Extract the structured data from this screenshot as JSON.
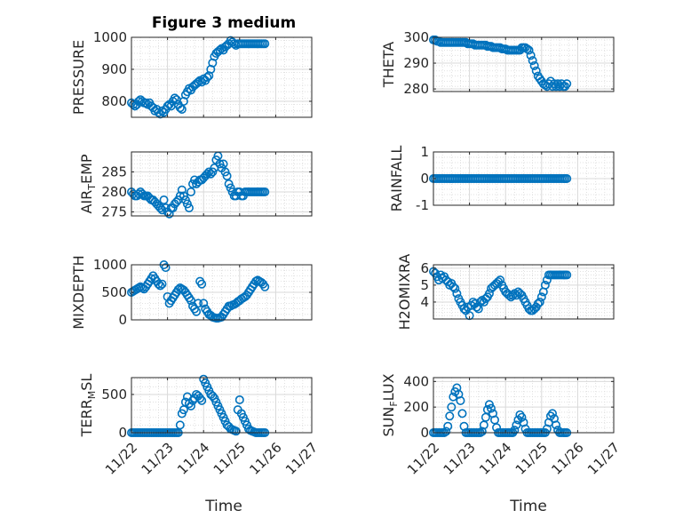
{
  "figure": {
    "title": "Figure 3 medium",
    "xlabel": "Time",
    "marker_color": "#0072BD",
    "grid_color": "#d9d9d9",
    "axis_color": "#262626"
  },
  "chart_data": [
    {
      "type": "scatter",
      "id": "pressure",
      "ylabel": {
        "main": "PRESSURE"
      },
      "ylim": [
        750,
        1000
      ],
      "yticks": [
        800,
        900,
        1000
      ],
      "yticklabels": [
        "800",
        "900",
        "1000"
      ],
      "xticklabels": [],
      "grid": true,
      "x": [
        0,
        0.05,
        0.1,
        0.15,
        0.2,
        0.25,
        0.3,
        0.35,
        0.4,
        0.45,
        0.5,
        0.55,
        0.6,
        0.65,
        0.7,
        0.75,
        0.8,
        0.85,
        0.9,
        0.95,
        1.0,
        1.05,
        1.1,
        1.15,
        1.2,
        1.25,
        1.3,
        1.35,
        1.4,
        1.45,
        1.5,
        1.55,
        1.6,
        1.65,
        1.7,
        1.75,
        1.8,
        1.85,
        1.9,
        1.95,
        2.0,
        2.05,
        2.1,
        2.15,
        2.2,
        2.25,
        2.3,
        2.35,
        2.4,
        2.45,
        2.5,
        2.55,
        2.6,
        2.65,
        2.7,
        2.75,
        2.8,
        2.85,
        2.9,
        2.95,
        3.0,
        3.05,
        3.1,
        3.15,
        3.2,
        3.25,
        3.3,
        3.35,
        3.4,
        3.45,
        3.5,
        3.55,
        3.6,
        3.65,
        3.7
      ],
      "y": [
        795,
        790,
        785,
        790,
        800,
        805,
        800,
        795,
        795,
        790,
        795,
        785,
        780,
        770,
        775,
        765,
        760,
        770,
        765,
        775,
        785,
        790,
        785,
        800,
        810,
        805,
        790,
        780,
        775,
        800,
        820,
        830,
        840,
        835,
        845,
        850,
        855,
        860,
        865,
        860,
        870,
        865,
        875,
        880,
        900,
        920,
        940,
        950,
        955,
        960,
        965,
        960,
        970,
        975,
        980,
        990,
        985,
        980,
        975,
        980,
        980,
        980,
        980,
        980,
        980,
        980,
        980,
        980,
        980,
        980,
        980,
        980,
        980,
        980,
        980
      ]
    },
    {
      "type": "scatter",
      "id": "theta",
      "ylabel": {
        "main": "THETA"
      },
      "ylim": [
        279,
        300
      ],
      "yticks": [
        280,
        290,
        300
      ],
      "yticklabels": [
        "280",
        "290",
        "300"
      ],
      "xticklabels": [],
      "grid": true,
      "x": [
        0,
        0.05,
        0.1,
        0.15,
        0.2,
        0.25,
        0.3,
        0.35,
        0.4,
        0.45,
        0.5,
        0.55,
        0.6,
        0.65,
        0.7,
        0.75,
        0.8,
        0.85,
        0.9,
        0.95,
        1.0,
        1.05,
        1.1,
        1.15,
        1.2,
        1.25,
        1.3,
        1.35,
        1.4,
        1.45,
        1.5,
        1.55,
        1.6,
        1.65,
        1.7,
        1.75,
        1.8,
        1.85,
        1.9,
        1.95,
        2.0,
        2.05,
        2.1,
        2.15,
        2.2,
        2.25,
        2.3,
        2.35,
        2.4,
        2.45,
        2.5,
        2.55,
        2.6,
        2.65,
        2.7,
        2.75,
        2.8,
        2.85,
        2.9,
        2.95,
        3.0,
        3.05,
        3.1,
        3.15,
        3.2,
        3.25,
        3.3,
        3.35,
        3.4,
        3.45,
        3.5,
        3.55,
        3.6,
        3.65,
        3.7
      ],
      "y": [
        299,
        299,
        298.5,
        298.5,
        298,
        298,
        298,
        298,
        298,
        298,
        298,
        298,
        298,
        298,
        298,
        298,
        298,
        298,
        298,
        297.5,
        297.5,
        297.5,
        297.5,
        297,
        297,
        297,
        297,
        297,
        297,
        297,
        296.5,
        296.5,
        296.5,
        296,
        296,
        296,
        296,
        296,
        295.5,
        295.5,
        295.5,
        295,
        295,
        295,
        295,
        295,
        295,
        295,
        295,
        296,
        296,
        296,
        295.5,
        295,
        293,
        291,
        289,
        287,
        285,
        284,
        283,
        282,
        281.5,
        281,
        282,
        283,
        281,
        282,
        281,
        282,
        281,
        282,
        281,
        281,
        282
      ]
    },
    {
      "type": "scatter",
      "id": "air_temp",
      "ylabel": {
        "main": "AIR",
        "sub": "T",
        "rest": "EMP"
      },
      "ylim": [
        274,
        290
      ],
      "yticks": [
        275,
        280,
        285
      ],
      "yticklabels": [
        "275",
        "280",
        "285"
      ],
      "xticklabels": [],
      "grid": true,
      "x": [
        0,
        0.05,
        0.1,
        0.15,
        0.2,
        0.25,
        0.3,
        0.35,
        0.4,
        0.45,
        0.5,
        0.55,
        0.6,
        0.65,
        0.7,
        0.75,
        0.8,
        0.85,
        0.9,
        0.95,
        1.0,
        1.05,
        1.1,
        1.15,
        1.2,
        1.25,
        1.3,
        1.35,
        1.4,
        1.45,
        1.5,
        1.55,
        1.6,
        1.65,
        1.7,
        1.75,
        1.8,
        1.85,
        1.9,
        1.95,
        2.0,
        2.05,
        2.1,
        2.15,
        2.2,
        2.25,
        2.3,
        2.35,
        2.4,
        2.45,
        2.5,
        2.55,
        2.6,
        2.65,
        2.7,
        2.75,
        2.8,
        2.85,
        2.9,
        2.95,
        3.0,
        3.05,
        3.1,
        3.15,
        3.2,
        3.25,
        3.3,
        3.35,
        3.4,
        3.45,
        3.5,
        3.55,
        3.6,
        3.65,
        3.7
      ],
      "y": [
        280,
        279.5,
        279,
        279,
        279.5,
        280,
        279.5,
        279,
        279,
        279,
        278.5,
        278,
        278,
        277.5,
        277,
        276.5,
        276,
        275.5,
        278,
        276,
        275,
        274.5,
        276,
        276,
        277,
        277.5,
        278,
        279,
        280.5,
        279,
        278,
        277,
        276,
        280,
        282,
        283,
        282,
        282.5,
        283,
        283,
        283.5,
        284,
        284.5,
        285,
        284.5,
        285,
        286,
        288,
        289,
        287,
        286,
        287,
        285,
        284,
        282,
        281,
        280,
        279,
        279,
        280,
        280,
        279,
        279,
        280,
        280,
        280,
        280,
        280,
        280,
        280,
        280,
        280,
        280,
        280,
        280
      ]
    },
    {
      "type": "scatter",
      "id": "rainfall",
      "ylabel": {
        "main": "RAINFALL"
      },
      "ylim": [
        -1,
        1
      ],
      "yticks": [
        -1,
        0,
        1
      ],
      "yticklabels": [
        "-1",
        "0",
        "1"
      ],
      "xticklabels": [],
      "grid": true,
      "x": [
        0,
        0.05,
        0.1,
        0.15,
        0.2,
        0.25,
        0.3,
        0.35,
        0.4,
        0.45,
        0.5,
        0.55,
        0.6,
        0.65,
        0.7,
        0.75,
        0.8,
        0.85,
        0.9,
        0.95,
        1.0,
        1.05,
        1.1,
        1.15,
        1.2,
        1.25,
        1.3,
        1.35,
        1.4,
        1.45,
        1.5,
        1.55,
        1.6,
        1.65,
        1.7,
        1.75,
        1.8,
        1.85,
        1.9,
        1.95,
        2.0,
        2.05,
        2.1,
        2.15,
        2.2,
        2.25,
        2.3,
        2.35,
        2.4,
        2.45,
        2.5,
        2.55,
        2.6,
        2.65,
        2.7,
        2.75,
        2.8,
        2.85,
        2.9,
        2.95,
        3.0,
        3.05,
        3.1,
        3.15,
        3.2,
        3.25,
        3.3,
        3.35,
        3.4,
        3.45,
        3.5,
        3.55,
        3.6,
        3.65,
        3.7
      ],
      "y": [
        0,
        0,
        0,
        0,
        0,
        0,
        0,
        0,
        0,
        0,
        0,
        0,
        0,
        0,
        0,
        0,
        0,
        0,
        0,
        0,
        0,
        0,
        0,
        0,
        0,
        0,
        0,
        0,
        0,
        0,
        0,
        0,
        0,
        0,
        0,
        0,
        0,
        0,
        0,
        0,
        0,
        0,
        0,
        0,
        0,
        0,
        0,
        0,
        0,
        0,
        0,
        0,
        0,
        0,
        0,
        0,
        0,
        0,
        0,
        0,
        0,
        0,
        0,
        0,
        0,
        0,
        0,
        0,
        0,
        0,
        0,
        0,
        0,
        0,
        0
      ]
    },
    {
      "type": "scatter",
      "id": "mixdepth",
      "ylabel": {
        "main": "MIXDEPTH"
      },
      "ylim": [
        0,
        1000
      ],
      "yticks": [
        0,
        500,
        1000
      ],
      "yticklabels": [
        "0",
        "500",
        "1000"
      ],
      "xticklabels": [],
      "grid": true,
      "x": [
        0,
        0.05,
        0.1,
        0.15,
        0.2,
        0.25,
        0.3,
        0.35,
        0.4,
        0.45,
        0.5,
        0.55,
        0.6,
        0.65,
        0.7,
        0.75,
        0.8,
        0.85,
        0.9,
        0.95,
        1.0,
        1.05,
        1.1,
        1.15,
        1.2,
        1.25,
        1.3,
        1.35,
        1.4,
        1.45,
        1.5,
        1.55,
        1.6,
        1.65,
        1.7,
        1.75,
        1.8,
        1.85,
        1.9,
        1.95,
        2.0,
        2.05,
        2.1,
        2.15,
        2.2,
        2.25,
        2.3,
        2.35,
        2.4,
        2.45,
        2.5,
        2.55,
        2.6,
        2.65,
        2.7,
        2.75,
        2.8,
        2.85,
        2.9,
        2.95,
        3.0,
        3.05,
        3.1,
        3.15,
        3.2,
        3.25,
        3.3,
        3.35,
        3.4,
        3.45,
        3.5,
        3.55,
        3.6,
        3.65,
        3.7
      ],
      "y": [
        500,
        520,
        540,
        560,
        580,
        600,
        580,
        560,
        600,
        650,
        700,
        750,
        800,
        750,
        700,
        650,
        620,
        650,
        1000,
        950,
        420,
        300,
        350,
        400,
        450,
        500,
        550,
        580,
        560,
        540,
        500,
        450,
        400,
        350,
        250,
        200,
        150,
        300,
        700,
        650,
        300,
        200,
        150,
        100,
        80,
        50,
        40,
        30,
        30,
        40,
        50,
        100,
        150,
        200,
        250,
        250,
        270,
        280,
        300,
        330,
        350,
        380,
        400,
        420,
        450,
        500,
        550,
        600,
        650,
        700,
        720,
        700,
        680,
        650,
        600
      ]
    },
    {
      "type": "scatter",
      "id": "h2omixra",
      "ylabel": {
        "main": "H2OMIXRA"
      },
      "ylim": [
        3,
        6.2
      ],
      "yticks": [
        4,
        5,
        6
      ],
      "yticklabels": [
        "4",
        "5",
        "6"
      ],
      "xticklabels": [],
      "grid": true,
      "x": [
        0,
        0.05,
        0.1,
        0.15,
        0.2,
        0.25,
        0.3,
        0.35,
        0.4,
        0.45,
        0.5,
        0.55,
        0.6,
        0.65,
        0.7,
        0.75,
        0.8,
        0.85,
        0.9,
        0.95,
        1.0,
        1.05,
        1.1,
        1.15,
        1.2,
        1.25,
        1.3,
        1.35,
        1.4,
        1.45,
        1.5,
        1.55,
        1.6,
        1.65,
        1.7,
        1.75,
        1.8,
        1.85,
        1.9,
        1.95,
        2.0,
        2.05,
        2.1,
        2.15,
        2.2,
        2.25,
        2.3,
        2.35,
        2.4,
        2.45,
        2.5,
        2.55,
        2.6,
        2.65,
        2.7,
        2.75,
        2.8,
        2.85,
        2.9,
        2.95,
        3.0,
        3.05,
        3.1,
        3.15,
        3.2,
        3.25,
        3.3,
        3.35,
        3.4,
        3.45,
        3.5,
        3.55,
        3.6,
        3.65,
        3.7
      ],
      "y": [
        5.8,
        5.7,
        5.5,
        5.3,
        5.6,
        5.4,
        5.5,
        5.3,
        5.2,
        5.0,
        5.1,
        4.9,
        4.8,
        4.5,
        4.2,
        4.0,
        3.8,
        3.6,
        3.5,
        3.7,
        3.2,
        3.8,
        4.0,
        3.9,
        3.7,
        3.6,
        4.0,
        4.1,
        4.0,
        4.2,
        4.3,
        4.5,
        4.8,
        4.9,
        5.0,
        5.1,
        5.2,
        5.3,
        5.0,
        4.8,
        4.6,
        4.5,
        4.4,
        4.3,
        4.4,
        4.5,
        4.4,
        4.6,
        4.5,
        4.4,
        4.2,
        4.0,
        3.8,
        3.6,
        3.5,
        3.5,
        3.6,
        3.7,
        3.9,
        4.0,
        4.3,
        4.6,
        5.0,
        5.3,
        5.6,
        5.6,
        5.6,
        5.6,
        5.6,
        5.6,
        5.6,
        5.6,
        5.6,
        5.6,
        5.6
      ]
    },
    {
      "type": "scatter",
      "id": "terr_msl",
      "ylabel": {
        "main": "TERR",
        "sub": "M",
        "rest": "SL"
      },
      "ylim": [
        0,
        720
      ],
      "yticks": [
        0,
        500
      ],
      "yticklabels": [
        "0",
        "500"
      ],
      "xticks": [
        0,
        1,
        2,
        3,
        4,
        5
      ],
      "xticklabels": [
        "11/22",
        "11/23",
        "11/24",
        "11/25",
        "11/26",
        "11/27"
      ],
      "grid": true,
      "x": [
        0,
        0.05,
        0.1,
        0.15,
        0.2,
        0.25,
        0.3,
        0.35,
        0.4,
        0.45,
        0.5,
        0.55,
        0.6,
        0.65,
        0.7,
        0.75,
        0.8,
        0.85,
        0.9,
        0.95,
        1.0,
        1.05,
        1.1,
        1.15,
        1.2,
        1.25,
        1.3,
        1.35,
        1.4,
        1.45,
        1.5,
        1.55,
        1.6,
        1.65,
        1.7,
        1.75,
        1.8,
        1.85,
        1.9,
        1.95,
        2.0,
        2.05,
        2.1,
        2.15,
        2.2,
        2.25,
        2.3,
        2.35,
        2.4,
        2.45,
        2.5,
        2.55,
        2.6,
        2.65,
        2.7,
        2.75,
        2.8,
        2.85,
        2.9,
        2.95,
        3.0,
        3.05,
        3.1,
        3.15,
        3.2,
        3.25,
        3.3,
        3.35,
        3.4,
        3.45,
        3.5,
        3.55,
        3.6,
        3.65,
        3.7
      ],
      "y": [
        0,
        0,
        0,
        0,
        0,
        0,
        0,
        0,
        0,
        0,
        0,
        0,
        0,
        0,
        0,
        0,
        0,
        0,
        0,
        0,
        0,
        0,
        0,
        0,
        0,
        0,
        0,
        100,
        250,
        300,
        400,
        470,
        380,
        350,
        420,
        450,
        500,
        480,
        450,
        420,
        700,
        650,
        600,
        550,
        500,
        480,
        450,
        400,
        350,
        300,
        250,
        200,
        150,
        100,
        80,
        50,
        40,
        30,
        20,
        300,
        430,
        250,
        200,
        150,
        100,
        50,
        30,
        20,
        10,
        0,
        0,
        0,
        0,
        0,
        0
      ]
    },
    {
      "type": "scatter",
      "id": "sun_flux",
      "ylabel": {
        "main": "SUN",
        "sub": "F",
        "rest": "LUX"
      },
      "ylim": [
        0,
        430
      ],
      "yticks": [
        0,
        200,
        400
      ],
      "yticklabels": [
        "0",
        "200",
        "400"
      ],
      "xticks": [
        0,
        1,
        2,
        3,
        4,
        5
      ],
      "xticklabels": [
        "11/22",
        "11/23",
        "11/24",
        "11/25",
        "11/26",
        "11/27"
      ],
      "grid": true,
      "x": [
        0,
        0.05,
        0.1,
        0.15,
        0.2,
        0.25,
        0.3,
        0.35,
        0.4,
        0.45,
        0.5,
        0.55,
        0.6,
        0.65,
        0.7,
        0.75,
        0.8,
        0.85,
        0.9,
        0.95,
        1.0,
        1.05,
        1.1,
        1.15,
        1.2,
        1.25,
        1.3,
        1.35,
        1.4,
        1.45,
        1.5,
        1.55,
        1.6,
        1.65,
        1.7,
        1.75,
        1.8,
        1.85,
        1.9,
        1.95,
        2.0,
        2.05,
        2.1,
        2.15,
        2.2,
        2.25,
        2.3,
        2.35,
        2.4,
        2.45,
        2.5,
        2.55,
        2.6,
        2.65,
        2.7,
        2.75,
        2.8,
        2.85,
        2.9,
        2.95,
        3.0,
        3.05,
        3.1,
        3.15,
        3.2,
        3.25,
        3.3,
        3.35,
        3.4,
        3.45,
        3.5,
        3.55,
        3.6,
        3.65,
        3.7
      ],
      "y": [
        0,
        0,
        0,
        0,
        0,
        0,
        0,
        10,
        50,
        130,
        200,
        280,
        320,
        350,
        300,
        250,
        150,
        50,
        0,
        0,
        0,
        0,
        0,
        0,
        0,
        0,
        0,
        10,
        60,
        120,
        180,
        220,
        190,
        150,
        100,
        40,
        0,
        0,
        0,
        0,
        0,
        0,
        0,
        0,
        0,
        20,
        60,
        100,
        140,
        120,
        80,
        30,
        0,
        0,
        0,
        0,
        0,
        0,
        0,
        0,
        0,
        0,
        0,
        30,
        80,
        130,
        150,
        110,
        60,
        20,
        0,
        0,
        0,
        0,
        0
      ]
    }
  ]
}
